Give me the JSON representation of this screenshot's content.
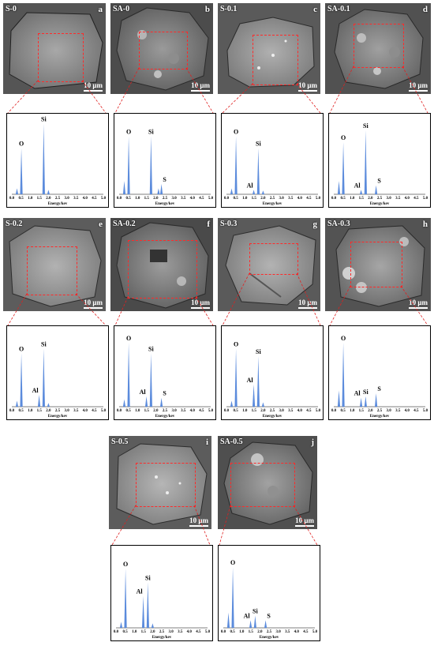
{
  "panels": [
    {
      "id": "a",
      "label": "S-0",
      "letter": "a",
      "scale": "10 μm",
      "peaks": [
        {
          "el": "O",
          "x": 0.52,
          "h": 0.62
        },
        {
          "el": "Si",
          "x": 1.74,
          "h": 0.95
        }
      ],
      "minor": [
        {
          "x": 0.28,
          "h": 0.08
        },
        {
          "x": 2.0,
          "h": 0.06
        }
      ]
    },
    {
      "id": "b",
      "label": "SA-0",
      "letter": "b",
      "scale": "10 μm",
      "peaks": [
        {
          "el": "O",
          "x": 0.52,
          "h": 0.78
        },
        {
          "el": "Si",
          "x": 1.74,
          "h": 0.78
        },
        {
          "el": "S",
          "x": 2.31,
          "h": 0.14
        }
      ],
      "minor": [
        {
          "x": 0.28,
          "h": 0.18
        },
        {
          "x": 2.15,
          "h": 0.08
        }
      ]
    },
    {
      "id": "c",
      "label": "S-0.1",
      "letter": "c",
      "scale": "10 μm",
      "peaks": [
        {
          "el": "O",
          "x": 0.52,
          "h": 0.78
        },
        {
          "el": "Si",
          "x": 1.74,
          "h": 0.62
        },
        {
          "el": "Al",
          "x": 1.49,
          "h": 0.06
        }
      ],
      "minor": [
        {
          "x": 0.28,
          "h": 0.08
        },
        {
          "x": 2.0,
          "h": 0.05
        }
      ]
    },
    {
      "id": "d",
      "label": "SA-0.1",
      "letter": "d",
      "scale": "10 μm",
      "peaks": [
        {
          "el": "O",
          "x": 0.52,
          "h": 0.7
        },
        {
          "el": "Si",
          "x": 1.74,
          "h": 0.86
        },
        {
          "el": "Al",
          "x": 1.49,
          "h": 0.06
        },
        {
          "el": "S",
          "x": 2.31,
          "h": 0.12
        }
      ],
      "minor": [
        {
          "x": 0.28,
          "h": 0.18
        }
      ]
    },
    {
      "id": "e",
      "label": "S-0.2",
      "letter": "e",
      "scale": "10 μm",
      "peaks": [
        {
          "el": "O",
          "x": 0.52,
          "h": 0.72
        },
        {
          "el": "Si",
          "x": 1.74,
          "h": 0.78
        },
        {
          "el": "Al",
          "x": 1.49,
          "h": 0.16
        }
      ],
      "minor": [
        {
          "x": 0.28,
          "h": 0.08
        },
        {
          "x": 2.0,
          "h": 0.05
        }
      ]
    },
    {
      "id": "f",
      "label": "SA-0.2",
      "letter": "f",
      "scale": "10 μm",
      "peaks": [
        {
          "el": "O",
          "x": 0.52,
          "h": 0.86
        },
        {
          "el": "Si",
          "x": 1.74,
          "h": 0.72
        },
        {
          "el": "Al",
          "x": 1.49,
          "h": 0.14
        },
        {
          "el": "S",
          "x": 2.31,
          "h": 0.12
        }
      ],
      "minor": [
        {
          "x": 0.28,
          "h": 0.1
        }
      ]
    },
    {
      "id": "g",
      "label": "S-0.3",
      "letter": "g",
      "scale": "10 μm",
      "peaks": [
        {
          "el": "O",
          "x": 0.52,
          "h": 0.78
        },
        {
          "el": "Si",
          "x": 1.74,
          "h": 0.68
        },
        {
          "el": "Al",
          "x": 1.49,
          "h": 0.3
        }
      ],
      "minor": [
        {
          "x": 0.28,
          "h": 0.08
        },
        {
          "x": 2.0,
          "h": 0.06
        }
      ]
    },
    {
      "id": "h",
      "label": "SA-0.3",
      "letter": "h",
      "scale": "10 μm",
      "peaks": [
        {
          "el": "O",
          "x": 0.52,
          "h": 0.86
        },
        {
          "el": "Al",
          "x": 1.49,
          "h": 0.12
        },
        {
          "el": "Si",
          "x": 1.74,
          "h": 0.14
        },
        {
          "el": "S",
          "x": 2.31,
          "h": 0.18
        }
      ],
      "minor": [
        {
          "x": 0.28,
          "h": 0.22
        }
      ]
    },
    {
      "id": "i",
      "label": "S-0.5",
      "letter": "i",
      "scale": "10 μm",
      "peaks": [
        {
          "el": "O",
          "x": 0.52,
          "h": 0.78
        },
        {
          "el": "Al",
          "x": 1.49,
          "h": 0.42
        },
        {
          "el": "Si",
          "x": 1.74,
          "h": 0.6
        }
      ],
      "minor": [
        {
          "x": 0.28,
          "h": 0.08
        },
        {
          "x": 2.0,
          "h": 0.06
        }
      ]
    },
    {
      "id": "j",
      "label": "SA-0.5",
      "letter": "j",
      "scale": "10 μm",
      "peaks": [
        {
          "el": "O",
          "x": 0.52,
          "h": 0.8
        },
        {
          "el": "Al",
          "x": 1.49,
          "h": 0.1
        },
        {
          "el": "Si",
          "x": 1.74,
          "h": 0.16
        },
        {
          "el": "S",
          "x": 2.31,
          "h": 0.1
        }
      ],
      "minor": [
        {
          "x": 0.28,
          "h": 0.2
        }
      ]
    }
  ],
  "eds_axis": {
    "xlabel": "Energy/kev",
    "xlim": [
      0.0,
      5.0
    ],
    "ticks": [
      "0.0",
      "0.5",
      "1.0",
      "1.5",
      "2.0",
      "2.5",
      "3.0",
      "3.5",
      "4.0",
      "4.5",
      "5.0"
    ]
  },
  "colors": {
    "spectrum": "#5b8bdc",
    "roi": "#ff2a2a",
    "leader": "#e02020"
  }
}
